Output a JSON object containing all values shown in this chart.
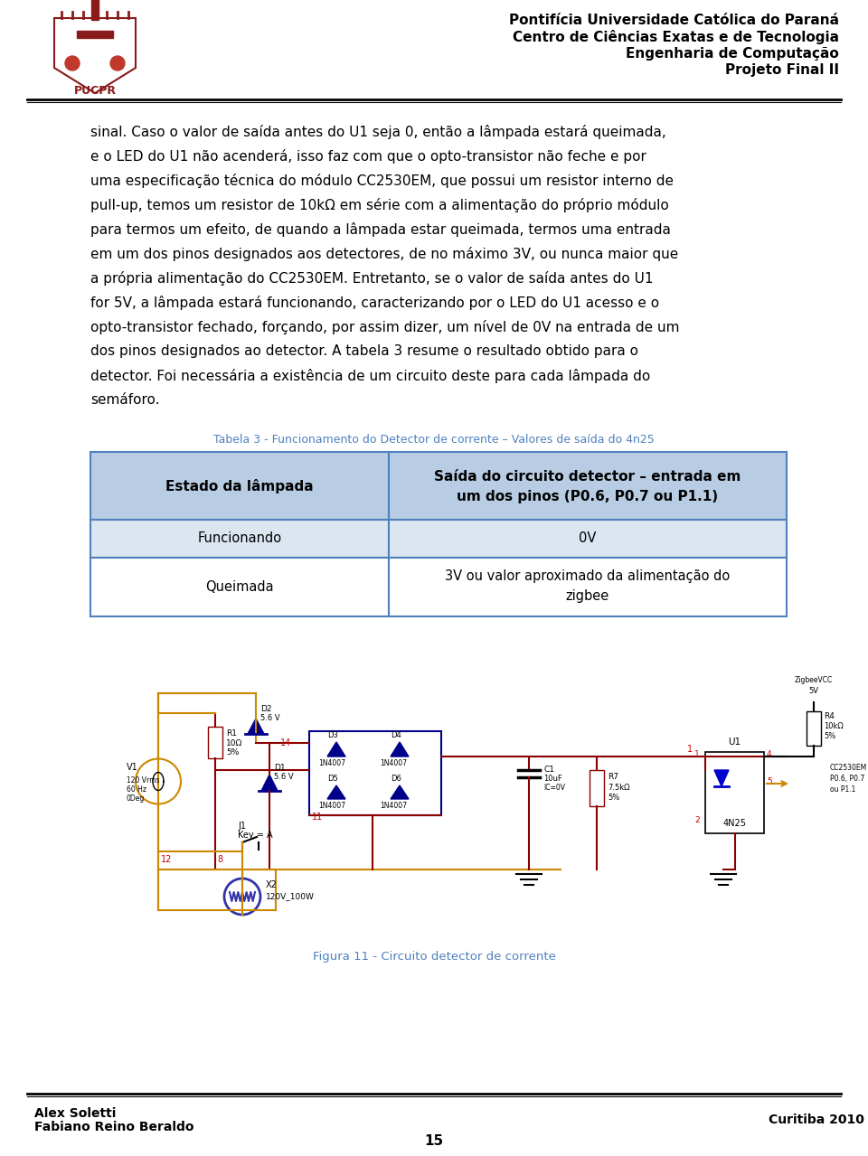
{
  "page_bg": "#ffffff",
  "header_right_lines": [
    "Pontifícia Universidade Católica do Paraná",
    "Centro de Ciências Exatas e de Tecnologia",
    "Engenharia de Computação",
    "Projeto Final II"
  ],
  "body_lines": [
    "sinal. Caso o valor de saída antes do U1 seja 0, então a lâmpada estará queimada,",
    "e o LED do U1 não acenderá, isso faz com que o opto-transistor não feche e por",
    "uma especificação técnica do módulo CC2530EM, que possui um resistor interno de",
    "pull-up, temos um resistor de 10kΩ em série com a alimentação do próprio módulo",
    "para termos um efeito, de quando a lâmpada estar queimada, termos uma entrada",
    "em um dos pinos designados aos detectores, de no máximo 3V, ou nunca maior que",
    "a própria alimentação do CC2530EM. Entretanto, se o valor de saída antes do U1",
    "for 5V, a lâmpada estará funcionando, caracterizando por o LED do U1 acesso e o",
    "opto-transistor fechado, forçando, por assim dizer, um nível de 0V na entrada de um",
    "dos pinos designados ao detector. A tabela 3 resume o resultado obtido para o",
    "detector. Foi necessária a existência de um circuito deste para cada lâmpada do",
    "semáforo."
  ],
  "table_caption": "Tabela 3 - Funcionamento do Detector de corrente – Valores de saída do 4n25",
  "table_header_col1": "Estado da lâmpada",
  "table_header_col2a": "Saída do circuito detector – entrada em",
  "table_header_col2b": "um dos pinos (P0.6, P0.7 ou P1.1)",
  "table_row1_col1": "Funcionando",
  "table_row1_col2": "0V",
  "table_row2_col1": "Queimada",
  "table_row2_col2a": "3V ou valor aproximado da alimentação do",
  "table_row2_col2b": "zigbee",
  "table_header_bg": "#b8cce4",
  "table_row1_bg": "#dce6f1",
  "table_border_color": "#4f81bd",
  "table_caption_color": "#4f81bd",
  "figure_caption": "Figura 11 - Circuito detector de corrente",
  "figure_caption_color": "#4f81bd",
  "footer_left1": "Alex Soletti",
  "footer_left2": "Fabiano Reino Beraldo",
  "footer_right": "Curitiba 2010",
  "footer_page": "15"
}
